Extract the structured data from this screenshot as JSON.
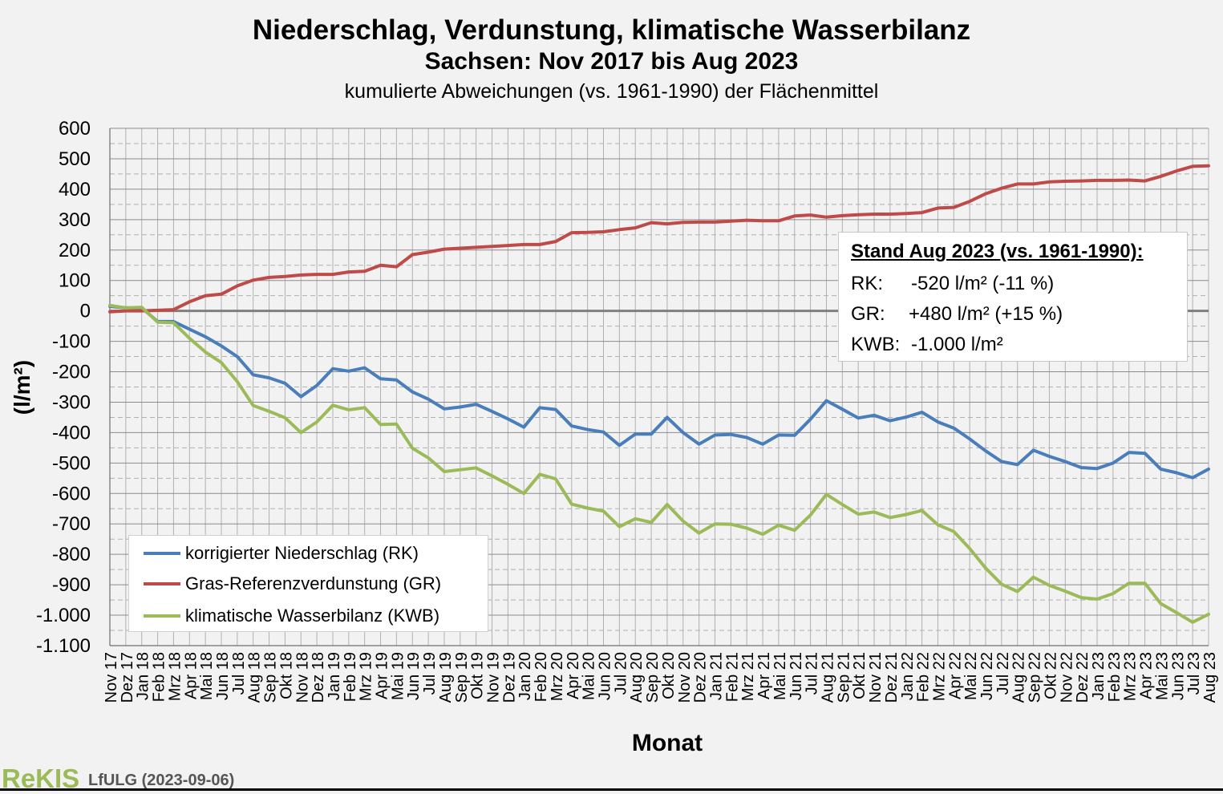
{
  "header": {
    "title": "Niederschlag, Verdunstung, klimatische Wasserbilanz",
    "subtitle": "Sachsen: Nov 2017 bis Aug 2023",
    "subtitle2": "kumulierte Abweichungen (vs. 1961-1990) der Flächenmittel"
  },
  "chart_data": {
    "type": "line",
    "title": "Niederschlag, Verdunstung, klimatische Wasserbilanz",
    "subtitle": "Sachsen: Nov 2017 bis Aug 2023",
    "xlabel": "Monat",
    "ylabel": "(l/m²)",
    "ylim": [
      -1100,
      600
    ],
    "yticks": [
      600,
      500,
      400,
      300,
      200,
      100,
      0,
      -100,
      -200,
      -300,
      -400,
      -500,
      -600,
      -700,
      -800,
      -900,
      -1000,
      -1100
    ],
    "ytick_labels": [
      "600",
      "500",
      "400",
      "300",
      "200",
      "100",
      "0",
      "-100",
      "-200",
      "-300",
      "-400",
      "-500",
      "-600",
      "-700",
      "-800",
      "-900",
      "-1.000",
      "-1.100"
    ],
    "grid": true,
    "legend_position": "bottom-left",
    "categories": [
      "Nov 17",
      "Dez 17",
      "Jan 18",
      "Feb 18",
      "Mrz 18",
      "Apr 18",
      "Mai 18",
      "Jun 18",
      "Jul 18",
      "Aug 18",
      "Sep 18",
      "Okt 18",
      "Nov 18",
      "Dez 18",
      "Jan 19",
      "Feb 19",
      "Mrz 19",
      "Apr 19",
      "Mai 19",
      "Jun 19",
      "Jul 19",
      "Aug 19",
      "Sep 19",
      "Okt 19",
      "Nov 19",
      "Dez 19",
      "Jan 20",
      "Feb 20",
      "Mrz 20",
      "Apr 20",
      "Mai 20",
      "Jun 20",
      "Jul 20",
      "Aug 20",
      "Sep 20",
      "Okt 20",
      "Nov 20",
      "Dez 20",
      "Jan 21",
      "Feb 21",
      "Mrz 21",
      "Apr 21",
      "Mai 21",
      "Jun 21",
      "Jul 21",
      "Aug 21",
      "Sep 21",
      "Okt 21",
      "Nov 21",
      "Dez 21",
      "Jan 22",
      "Feb 22",
      "Mrz 22",
      "Apr 22",
      "Mai 22",
      "Jun 22",
      "Jul 22",
      "Aug 22",
      "Sep 22",
      "Okt 22",
      "Nov 22",
      "Dez 22",
      "Jan 23",
      "Feb 23",
      "Mrz 23",
      "Apr 23",
      "Mai 23",
      "Jun 23",
      "Jul 23",
      "Aug 23"
    ],
    "series": [
      {
        "name": "korrigierter Niederschlag (RK)",
        "color": "#4a7ebb",
        "values": [
          15,
          10,
          10,
          -35,
          -35,
          -60,
          -85,
          -115,
          -150,
          -210,
          -220,
          -238,
          -282,
          -245,
          -190,
          -198,
          -187,
          -223,
          -227,
          -266,
          -290,
          -322,
          -316,
          -307,
          -330,
          -355,
          -382,
          -318,
          -324,
          -378,
          -390,
          -398,
          -442,
          -405,
          -405,
          -350,
          -400,
          -438,
          -408,
          -406,
          -416,
          -438,
          -408,
          -409,
          -356,
          -295,
          -323,
          -352,
          -343,
          -361,
          -349,
          -333,
          -365,
          -385,
          -421,
          -460,
          -495,
          -505,
          -458,
          -478,
          -495,
          -515,
          -518,
          -500,
          -465,
          -468,
          -520,
          -532,
          -548,
          -520
        ]
      },
      {
        "name": "Gras-Referenzverdunstung (GR)",
        "color": "#be4b48",
        "values": [
          -3,
          0,
          0,
          2,
          4,
          30,
          50,
          55,
          82,
          101,
          110,
          113,
          118,
          120,
          120,
          128,
          130,
          150,
          145,
          185,
          193,
          203,
          206,
          209,
          212,
          215,
          218,
          218,
          228,
          257,
          258,
          260,
          267,
          273,
          290,
          286,
          291,
          292,
          292,
          295,
          298,
          296,
          296,
          312,
          315,
          308,
          313,
          316,
          318,
          318,
          320,
          323,
          338,
          340,
          360,
          385,
          403,
          417,
          417,
          424,
          426,
          427,
          429,
          429,
          430,
          427,
          442,
          460,
          475,
          477
        ]
      },
      {
        "name": "klimatische Wasserbilanz (KWB)",
        "color": "#9bbb59",
        "values": [
          18,
          10,
          12,
          -37,
          -39,
          -90,
          -135,
          -170,
          -232,
          -311,
          -330,
          -351,
          -400,
          -365,
          -310,
          -325,
          -318,
          -373,
          -372,
          -451,
          -483,
          -528,
          -522,
          -516,
          -542,
          -570,
          -600,
          -537,
          -552,
          -635,
          -648,
          -658,
          -709,
          -683,
          -695,
          -636,
          -691,
          -730,
          -700,
          -701,
          -714,
          -734,
          -704,
          -721,
          -671,
          -603,
          -636,
          -668,
          -661,
          -679,
          -669,
          -656,
          -703,
          -725,
          -781,
          -845,
          -898,
          -922,
          -875,
          -902,
          -921,
          -942,
          -947,
          -929,
          -895,
          -895,
          -962,
          -992,
          -1023,
          -997
        ]
      }
    ]
  },
  "legend": {
    "items": [
      {
        "label": "korrigierter Niederschlag (RK)",
        "color": "#4a7ebb"
      },
      {
        "label": "Gras-Referenzverdunstung (GR)",
        "color": "#be4b48"
      },
      {
        "label": "klimatische Wasserbilanz (KWB)",
        "color": "#9bbb59"
      }
    ]
  },
  "stats": {
    "heading": "Stand Aug 2023 (vs. 1961-1990):",
    "rows": [
      {
        "label": "RK:",
        "value": "-520 l/m² (-11 %)"
      },
      {
        "label": "GR:",
        "value": "+480 l/m² (+15 %)"
      },
      {
        "label": "KWB:",
        "value": "-1.000 l/m²"
      }
    ]
  },
  "footer": {
    "logo": "ReKIS",
    "source": "LfULG (2023-09-06)"
  }
}
